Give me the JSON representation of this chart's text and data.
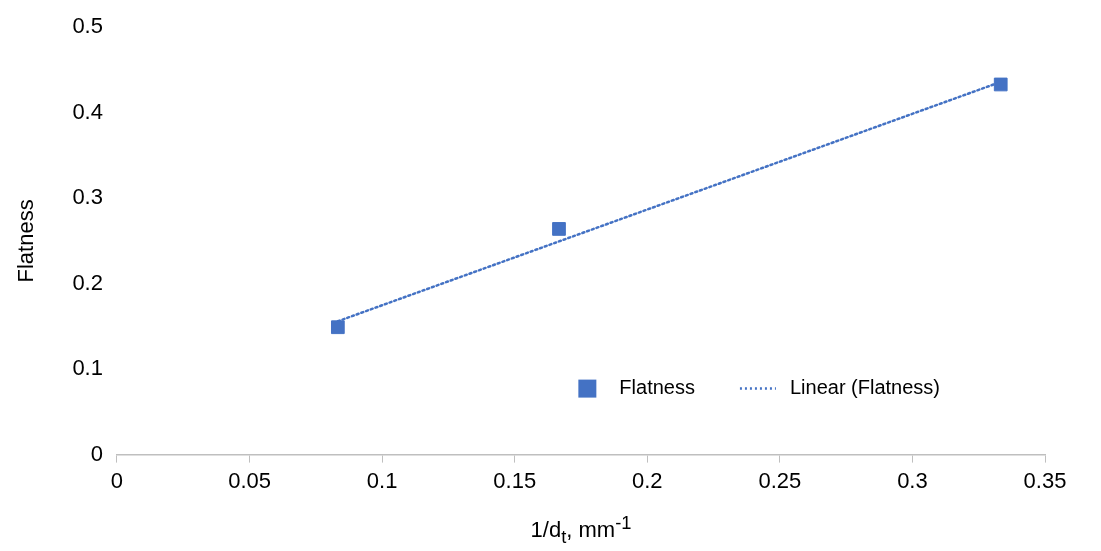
{
  "chart_data": {
    "type": "scatter",
    "xlabel": "1/d$_{t}$, mm$^{-1}$",
    "ylabel": "Flatness",
    "x": [
      0.0833,
      0.1667,
      0.3333
    ],
    "series": [
      {
        "name": "Flatness",
        "color": "#4472c4",
        "marker": "square",
        "values": [
          0.149,
          0.264,
          0.433
        ]
      },
      {
        "name": "Linear (Flatness)",
        "type": "line",
        "color": "#4472c4",
        "line_style": "dotted",
        "marker": "none",
        "x": [
          0.0833,
          0.3333
        ],
        "values": [
          0.156,
          0.436
        ]
      }
    ],
    "xlim": [
      0,
      0.35
    ],
    "xticks": [
      0,
      0.05,
      0.1,
      0.15,
      0.2,
      0.25,
      0.3,
      0.35
    ],
    "ylim": [
      0,
      0.5
    ],
    "yticks": [
      0,
      0.1,
      0.2,
      0.3,
      0.4,
      0.5
    ],
    "grid": false,
    "legend": "bottom right"
  }
}
